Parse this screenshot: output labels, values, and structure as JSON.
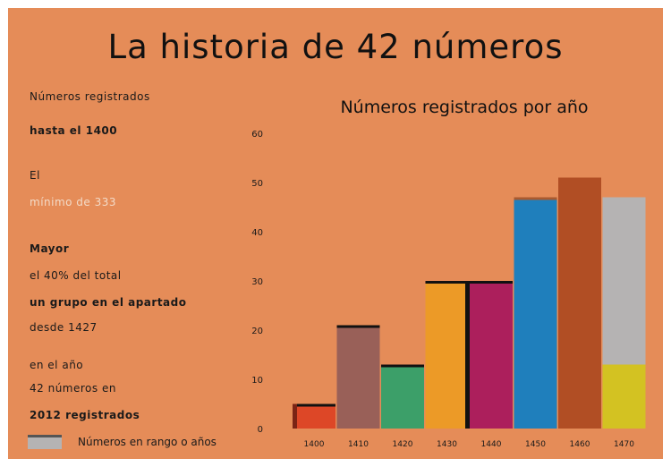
{
  "title": "La historia de 42 números",
  "notes": [
    {
      "text": "Números registrados",
      "style": "normal"
    },
    {
      "text": "hasta el 1400",
      "style": "bold"
    },
    {
      "text": "El",
      "style": "normal"
    },
    {
      "text": "mínimo de 333",
      "style": "light"
    },
    {
      "text": "Mayor",
      "style": "bold"
    },
    {
      "text": "el 40% del total",
      "style": "normal"
    },
    {
      "text": "un grupo en el apartado",
      "style": "bold"
    },
    {
      "text": "desde 1427",
      "style": "normal"
    },
    {
      "text": "en el año",
      "style": "normal"
    },
    {
      "text": "42 números en",
      "style": "normal"
    },
    {
      "text": "2012 registrados",
      "style": "bold"
    }
  ],
  "legend": {
    "label": "Números en rango o años",
    "swatch_color": "#b5b3b3"
  },
  "chart_data": {
    "type": "bar",
    "title": "Números registrados por año",
    "categories": [
      "1400",
      "1410",
      "1420",
      "1430",
      "1440",
      "1450",
      "1460",
      "1470"
    ],
    "values": [
      5,
      21,
      13,
      30,
      30,
      47,
      51,
      47
    ],
    "y_ticks": [
      "0",
      "10",
      "20",
      "30",
      "40",
      "50",
      "60"
    ],
    "ylim": [
      0,
      60
    ],
    "colors": [
      "#dd4727",
      "#996058",
      "#3c9f69",
      "#ec9a27",
      "#ac1f5c",
      "#1f7fbc",
      "#b14e24",
      "#b5b3b3"
    ],
    "extra": {
      "last_bar_bottom_value": 13,
      "last_bar_bottom_color": "#d3c222"
    }
  }
}
